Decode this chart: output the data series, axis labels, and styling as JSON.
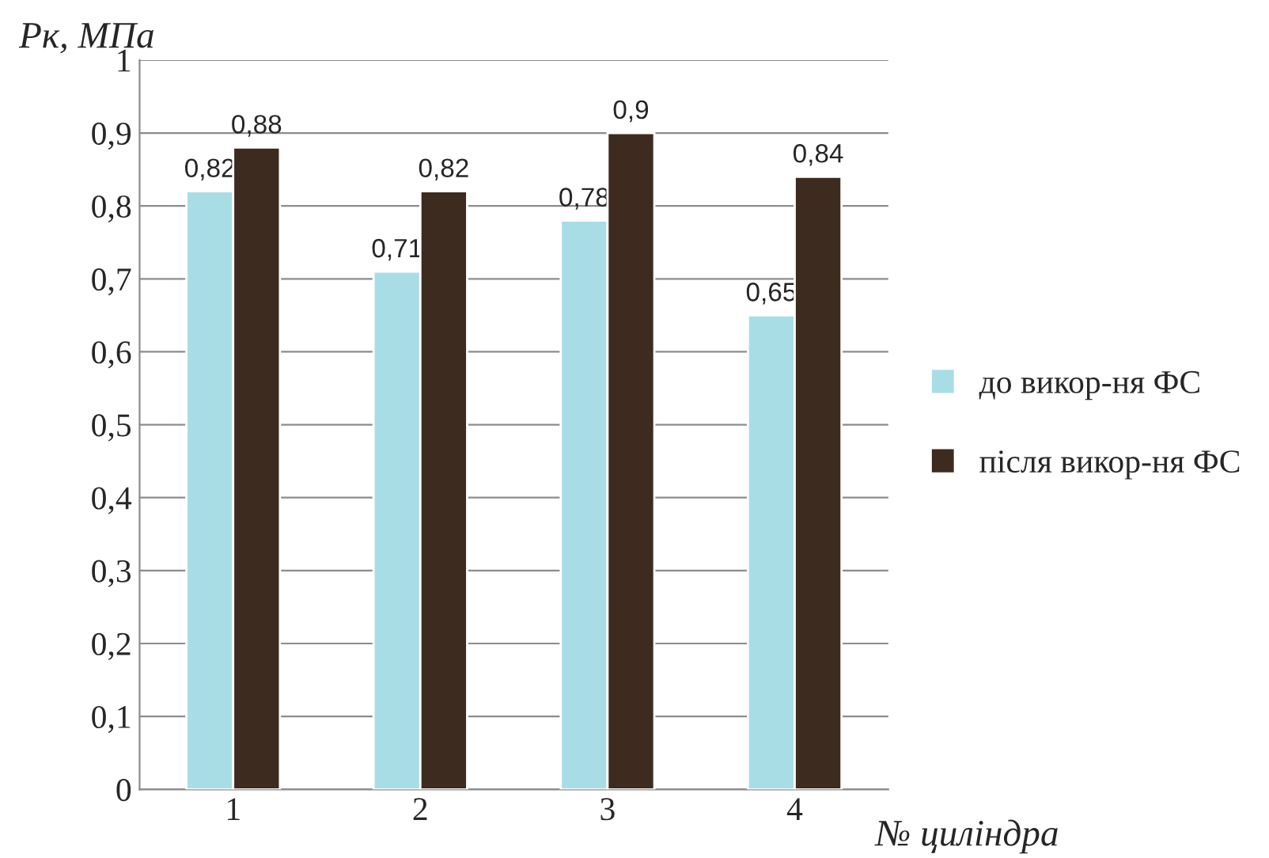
{
  "chart_data": {
    "type": "bar",
    "xlabel": "№ циліндра",
    "ylabel": "Рк, МПа",
    "categories": [
      "1",
      "2",
      "3",
      "4"
    ],
    "series": [
      {
        "name": "до викор-ня ФС",
        "color": "#a9dde6",
        "values": [
          0.82,
          0.71,
          0.78,
          0.65
        ],
        "value_labels": [
          "0,82",
          "0,71",
          "0,78",
          "0,65"
        ]
      },
      {
        "name": "після викор-ня ФС",
        "color": "#3d2b20",
        "values": [
          0.88,
          0.82,
          0.9,
          0.84
        ],
        "value_labels": [
          "0,88",
          "0,82",
          "0,9",
          "0,84"
        ]
      }
    ],
    "ylim": [
      0,
      1
    ],
    "yticks": [
      0,
      {
        "value": 0.1,
        "label": "0,1"
      },
      {
        "value": 0.2,
        "label": "0,2"
      },
      {
        "value": 0.3,
        "label": "0,3"
      },
      {
        "value": 0.4,
        "label": "0,4"
      },
      {
        "value": 0.5,
        "label": "0,5"
      },
      {
        "value": 0.6,
        "label": "0,6"
      },
      {
        "value": 0.7,
        "label": "0,7"
      },
      {
        "value": 0.8,
        "label": "0,8"
      },
      {
        "value": 0.9,
        "label": "0,9"
      },
      1
    ],
    "grid": "y",
    "legend": "right"
  }
}
